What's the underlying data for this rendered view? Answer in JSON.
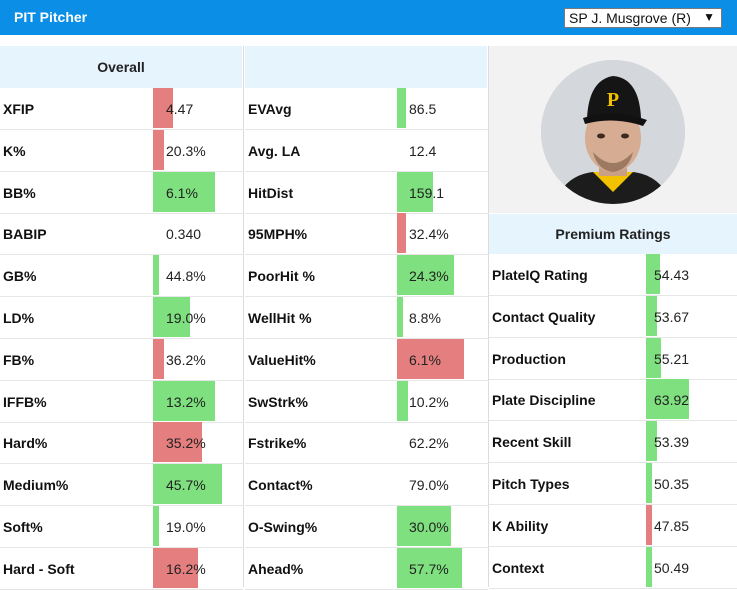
{
  "header": {
    "title": "PIT Pitcher",
    "select_value": "SP J. Musgrove (R)",
    "caret": "▼"
  },
  "col1": {
    "heading": "Overall",
    "rows": [
      {
        "label": "XFIP",
        "value": "4.47",
        "fill": 0.22,
        "color": "#e57f7f"
      },
      {
        "label": "K%",
        "value": "20.3%",
        "fill": 0.12,
        "color": "#e57f7f"
      },
      {
        "label": "BB%",
        "value": "6.1%",
        "fill": 0.7,
        "color": "#7ee07e"
      },
      {
        "label": "BABIP",
        "value": "0.340",
        "fill": 0,
        "color": "#7ee07e"
      },
      {
        "label": "GB%",
        "value": "44.8%",
        "fill": 0.07,
        "color": "#7ee07e"
      },
      {
        "label": "LD%",
        "value": "19.0%",
        "fill": 0.42,
        "color": "#7ee07e"
      },
      {
        "label": "FB%",
        "value": "36.2%",
        "fill": 0.12,
        "color": "#e57f7f"
      },
      {
        "label": "IFFB%",
        "value": "13.2%",
        "fill": 0.7,
        "color": "#7ee07e"
      },
      {
        "label": "Hard%",
        "value": "35.2%",
        "fill": 0.55,
        "color": "#e57f7f"
      },
      {
        "label": "Medium%",
        "value": "45.7%",
        "fill": 0.78,
        "color": "#7ee07e"
      },
      {
        "label": "Soft%",
        "value": "19.0%",
        "fill": 0.02,
        "color": "#7ee07e"
      },
      {
        "label": "Hard - Soft",
        "value": "16.2%",
        "fill": 0.5,
        "color": "#e57f7f"
      }
    ]
  },
  "col2": {
    "heading": "",
    "rows": [
      {
        "label": "EVAvg",
        "value": "86.5",
        "fill": 0.1,
        "color": "#7ee07e"
      },
      {
        "label": "Avg. LA",
        "value": "12.4",
        "fill": 0,
        "color": "#7ee07e"
      },
      {
        "label": "HitDist",
        "value": "159.1",
        "fill": 0.4,
        "color": "#7ee07e"
      },
      {
        "label": "95MPH%",
        "value": "32.4%",
        "fill": 0.1,
        "color": "#e57f7f"
      },
      {
        "label": "PoorHit %",
        "value": "24.3%",
        "fill": 0.63,
        "color": "#7ee07e"
      },
      {
        "label": "WellHit %",
        "value": "8.8%",
        "fill": 0.06,
        "color": "#7ee07e"
      },
      {
        "label": "ValueHit%",
        "value": "6.1%",
        "fill": 0.74,
        "color": "#e57f7f"
      },
      {
        "label": "SwStrk%",
        "value": "10.2%",
        "fill": 0.12,
        "color": "#7ee07e"
      },
      {
        "label": "Fstrike%",
        "value": "62.2%",
        "fill": 0,
        "color": "#7ee07e"
      },
      {
        "label": "Contact%",
        "value": "79.0%",
        "fill": 0,
        "color": "#7ee07e"
      },
      {
        "label": "O-Swing%",
        "value": "30.0%",
        "fill": 0.6,
        "color": "#7ee07e"
      },
      {
        "label": "Ahead%",
        "value": "57.7%",
        "fill": 0.72,
        "color": "#7ee07e"
      }
    ]
  },
  "premium": {
    "heading": "Premium Ratings",
    "rows": [
      {
        "label": "PlateIQ Rating",
        "value": "54.43",
        "fill": 0.15,
        "color": "#7ee07e"
      },
      {
        "label": "Contact Quality",
        "value": "53.67",
        "fill": 0.12,
        "color": "#7ee07e"
      },
      {
        "label": "Production",
        "value": "55.21",
        "fill": 0.16,
        "color": "#7ee07e"
      },
      {
        "label": "Plate Discipline",
        "value": "63.92",
        "fill": 0.47,
        "color": "#7ee07e"
      },
      {
        "label": "Recent Skill",
        "value": "53.39",
        "fill": 0.12,
        "color": "#7ee07e"
      },
      {
        "label": "Pitch Types",
        "value": "50.35",
        "fill": 0.01,
        "color": "#7ee07e"
      },
      {
        "label": "K Ability",
        "value": "47.85",
        "fill": 0.07,
        "color": "#e57f7f"
      },
      {
        "label": "Context",
        "value": "50.49",
        "fill": 0.02,
        "color": "#7ee07e"
      }
    ]
  }
}
